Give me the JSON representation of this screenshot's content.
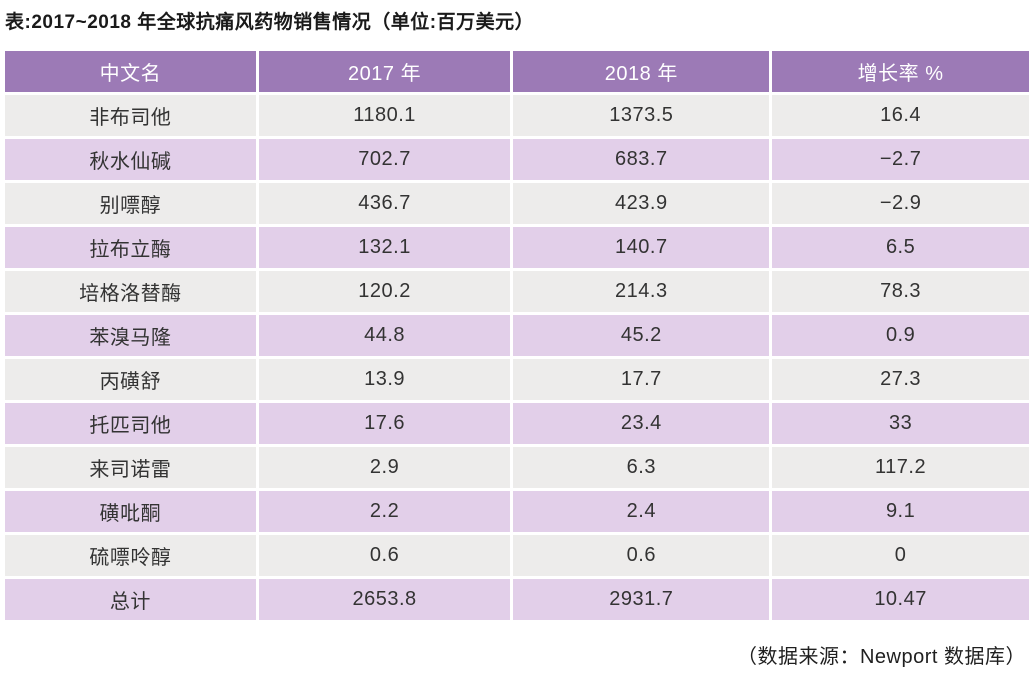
{
  "page_title": "表:2017~2018 年全球抗痛风药物销售情况（单位:百万美元）",
  "table": {
    "columns": [
      "中文名",
      "2017 年",
      "2018 年",
      "增长率 %"
    ],
    "rows": [
      {
        "name": "非布司他",
        "y2017": "1180.1",
        "y2018": "1373.5",
        "growth": "16.4"
      },
      {
        "name": "秋水仙碱",
        "y2017": "702.7",
        "y2018": "683.7",
        "growth": "−2.7"
      },
      {
        "name": "别嘌醇",
        "y2017": "436.7",
        "y2018": "423.9",
        "growth": "−2.9"
      },
      {
        "name": "拉布立酶",
        "y2017": "132.1",
        "y2018": "140.7",
        "growth": "6.5"
      },
      {
        "name": "培格洛替酶",
        "y2017": "120.2",
        "y2018": "214.3",
        "growth": "78.3"
      },
      {
        "name": "苯溴马隆",
        "y2017": "44.8",
        "y2018": "45.2",
        "growth": "0.9"
      },
      {
        "name": "丙磺舒",
        "y2017": "13.9",
        "y2018": "17.7",
        "growth": "27.3"
      },
      {
        "name": "托匹司他",
        "y2017": "17.6",
        "y2018": "23.4",
        "growth": "33"
      },
      {
        "name": "来司诺雷",
        "y2017": "2.9",
        "y2018": "6.3",
        "growth": "117.2"
      },
      {
        "name": "磺吡酮",
        "y2017": "2.2",
        "y2018": "2.4",
        "growth": "9.1"
      },
      {
        "name": "硫嘌呤醇",
        "y2017": "0.6",
        "y2018": "0.6",
        "growth": "0"
      },
      {
        "name": "总计",
        "y2017": "2653.8",
        "y2018": "2931.7",
        "growth": "10.47"
      }
    ],
    "total_label": "总计"
  },
  "footer": {
    "source": "（数据来源：Newport 数据库）"
  },
  "colors": {
    "header_bg": "#9c7ab6",
    "header_text": "#ffffff",
    "row_odd_bg": "#edeceb",
    "row_even_bg": "#e2cfe9",
    "body_text": "#333333"
  },
  "chart_data": {
    "type": "table",
    "title": "表:2017~2018 年全球抗痛风药物销售情况（单位:百万美元）",
    "source": "（数据来源：Newport 数据库）",
    "columns": [
      "中文名",
      "2017 年",
      "2018 年",
      "增长率 %"
    ],
    "categories": [
      "非布司他",
      "秋水仙碱",
      "别嘌醇",
      "拉布立酶",
      "培格洛替酶",
      "苯溴马隆",
      "丙磺舒",
      "托匹司他",
      "来司诺雷",
      "磺吡酮",
      "硫嘌呤醇",
      "总计"
    ],
    "series": [
      {
        "name": "2017 年",
        "values": [
          1180.1,
          702.7,
          436.7,
          132.1,
          120.2,
          44.8,
          13.9,
          17.6,
          2.9,
          2.2,
          0.6,
          2653.8
        ]
      },
      {
        "name": "2018 年",
        "values": [
          1373.5,
          683.7,
          423.9,
          140.7,
          214.3,
          45.2,
          17.7,
          23.4,
          6.3,
          2.4,
          0.6,
          2931.7
        ]
      },
      {
        "name": "增长率 %",
        "values": [
          16.4,
          -2.7,
          -2.9,
          6.5,
          78.3,
          0.9,
          27.3,
          33,
          117.2,
          9.1,
          0,
          10.47
        ]
      }
    ]
  }
}
